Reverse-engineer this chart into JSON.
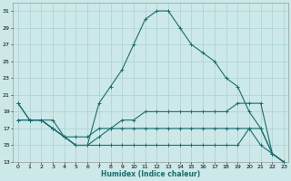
{
  "xlabel": "Humidex (Indice chaleur)",
  "bg_color": "#cce8e8",
  "grid_color": "#aad0d0",
  "line_color": "#1a6e6e",
  "xlim_min": -0.5,
  "xlim_max": 23.4,
  "ylim_min": 13,
  "ylim_max": 32,
  "xticks": [
    0,
    1,
    2,
    3,
    4,
    5,
    6,
    7,
    8,
    9,
    10,
    11,
    12,
    13,
    14,
    15,
    16,
    17,
    18,
    19,
    20,
    21,
    22,
    23
  ],
  "yticks": [
    13,
    15,
    17,
    19,
    21,
    23,
    25,
    27,
    29,
    31
  ],
  "curve1_x": [
    0,
    1,
    2,
    3,
    4,
    5,
    6,
    7,
    8,
    9,
    10,
    11,
    12,
    13,
    14,
    15,
    16,
    17,
    18,
    19,
    20,
    21,
    22,
    23
  ],
  "curve1_y": [
    20,
    18,
    18,
    18,
    16,
    15,
    15,
    20,
    22,
    24,
    27,
    30,
    31,
    31,
    29,
    27,
    26,
    25,
    23,
    22,
    19,
    17,
    14,
    13
  ],
  "curve2_x": [
    0,
    1,
    2,
    3,
    4,
    5,
    6,
    7,
    8,
    9,
    10,
    11,
    12,
    13,
    14,
    15,
    16,
    17,
    18,
    19,
    20,
    21,
    22,
    23
  ],
  "curve2_y": [
    18,
    18,
    18,
    17,
    16,
    15,
    15,
    16,
    17,
    18,
    18,
    19,
    19,
    19,
    19,
    19,
    19,
    19,
    19,
    20,
    20,
    20,
    14,
    13
  ],
  "curve3_x": [
    0,
    1,
    2,
    3,
    4,
    5,
    6,
    7,
    8,
    9,
    10,
    11,
    12,
    13,
    14,
    15,
    16,
    17,
    18,
    19,
    20,
    21,
    22,
    23
  ],
  "curve3_y": [
    18,
    18,
    18,
    17,
    16,
    15,
    15,
    15,
    15,
    15,
    15,
    15,
    15,
    15,
    15,
    15,
    15,
    15,
    15,
    15,
    17,
    15,
    14,
    13
  ],
  "curve4_x": [
    0,
    1,
    2,
    3,
    4,
    5,
    6,
    7,
    8,
    9,
    10,
    11,
    12,
    13,
    14,
    15,
    16,
    17,
    18,
    19,
    20,
    21,
    22,
    23
  ],
  "curve4_y": [
    20,
    18,
    18,
    17,
    16,
    16,
    16,
    17,
    17,
    17,
    17,
    17,
    17,
    17,
    17,
    17,
    17,
    17,
    17,
    17,
    17,
    17,
    14,
    13
  ]
}
